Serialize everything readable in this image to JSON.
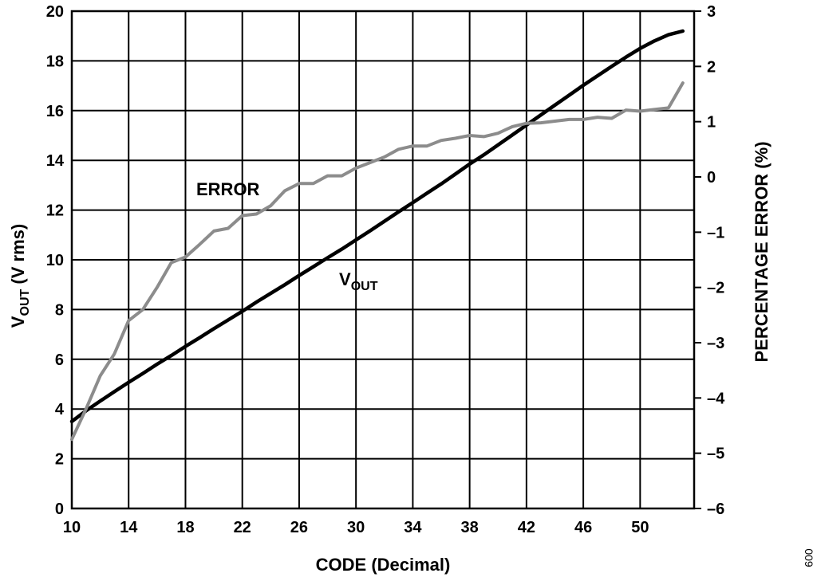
{
  "chart_data": {
    "type": "line",
    "xlabel": "CODE (Decimal)",
    "ylabel_main": "V",
    "ylabel_sub": "OUT",
    "ylabel_rest": " (V rms)",
    "y2label": "PERCENTAGE ERROR (%)",
    "xlim": [
      10,
      53.8
    ],
    "ylim": [
      0,
      20
    ],
    "y2lim": [
      -6,
      3
    ],
    "xticks": [
      10,
      14,
      18,
      22,
      26,
      30,
      34,
      38,
      42,
      46,
      50
    ],
    "yticks": [
      0,
      2,
      4,
      6,
      8,
      10,
      12,
      14,
      16,
      18,
      20
    ],
    "y2ticks": [
      3,
      2,
      1,
      0,
      -1,
      -2,
      -3,
      -4,
      -5,
      -6
    ],
    "y2tick_labels": [
      "3",
      "2",
      "1",
      "0",
      "–1",
      "–2",
      "–3",
      "–4",
      "–5",
      "–6"
    ],
    "grid": true,
    "series": [
      {
        "name": "V",
        "name_sub": "OUT",
        "axis": "left",
        "color": "#000000",
        "x": [
          10,
          11,
          12,
          13,
          14,
          15,
          16,
          17,
          18,
          19,
          20,
          21,
          22,
          23,
          24,
          25,
          26,
          27,
          28,
          29,
          30,
          31,
          32,
          33,
          34,
          35,
          36,
          37,
          38,
          39,
          40,
          41,
          42,
          43,
          44,
          45,
          46,
          47,
          48,
          49,
          50,
          51,
          52,
          53
        ],
        "y": [
          3.5,
          3.93,
          4.32,
          4.7,
          5.07,
          5.43,
          5.8,
          6.15,
          6.52,
          6.87,
          7.23,
          7.58,
          7.93,
          8.3,
          8.65,
          9.0,
          9.37,
          9.72,
          10.08,
          10.43,
          10.8,
          11.17,
          11.55,
          11.93,
          12.3,
          12.68,
          13.05,
          13.45,
          13.85,
          14.22,
          14.62,
          15.02,
          15.42,
          15.82,
          16.22,
          16.62,
          17.02,
          17.4,
          17.78,
          18.15,
          18.5,
          18.8,
          19.05,
          19.2
        ]
      },
      {
        "name": "ERROR",
        "axis": "right",
        "color": "#8c8c8c",
        "x": [
          10,
          11,
          12,
          13,
          14,
          15,
          16,
          17,
          18,
          19,
          20,
          21,
          22,
          23,
          24,
          25,
          26,
          27,
          28,
          29,
          30,
          31,
          32,
          33,
          34,
          35,
          36,
          37,
          38,
          39,
          40,
          41,
          42,
          43,
          44,
          45,
          46,
          47,
          48,
          49,
          50,
          51,
          52,
          53
        ],
        "y": [
          -4.75,
          -4.2,
          -3.6,
          -3.2,
          -2.6,
          -2.4,
          -2.0,
          -1.55,
          -1.45,
          -1.22,
          -0.98,
          -0.93,
          -0.7,
          -0.67,
          -0.52,
          -0.25,
          -0.12,
          -0.12,
          0.02,
          0.02,
          0.16,
          0.26,
          0.36,
          0.5,
          0.56,
          0.56,
          0.66,
          0.7,
          0.75,
          0.73,
          0.79,
          0.91,
          0.97,
          0.98,
          1.01,
          1.04,
          1.04,
          1.08,
          1.06,
          1.21,
          1.19,
          1.22,
          1.25,
          1.7
        ]
      }
    ],
    "annotations": {
      "error_label": "ERROR",
      "vout_main": "V",
      "vout_sub": "OUT"
    },
    "figure_id": "009"
  }
}
